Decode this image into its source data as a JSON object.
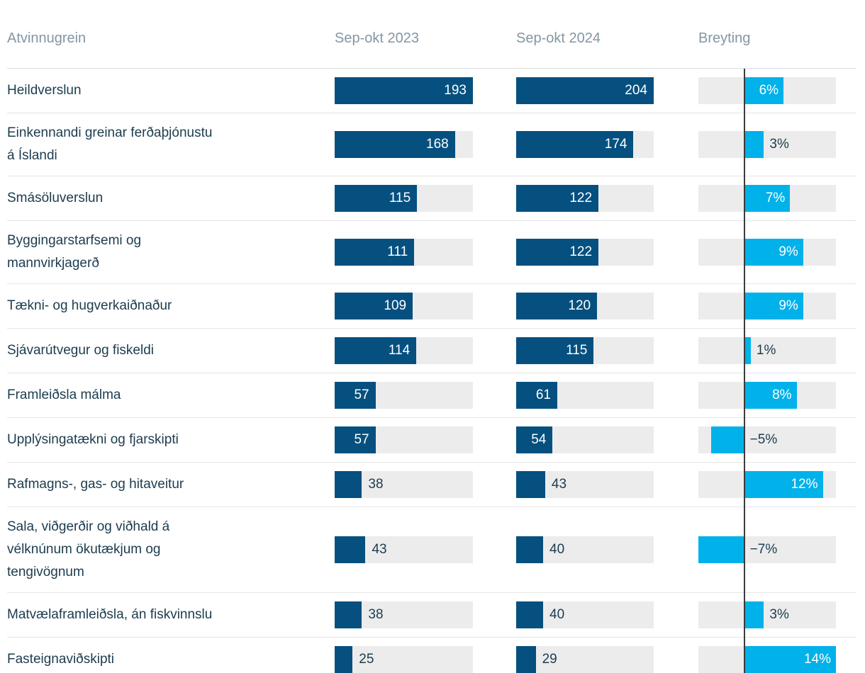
{
  "table": {
    "headers": {
      "industry": "Atvinnugrein",
      "period1": "Sep-okt 2023",
      "period2": "Sep-okt 2024",
      "change": "Breyting"
    },
    "rows": [
      {
        "label": "Heildverslun",
        "v2023": 193,
        "v2024": 204,
        "change_pct": 6,
        "change_label": "6%"
      },
      {
        "label": "Einkennandi greinar ferðaþjónustu á Íslandi",
        "v2023": 168,
        "v2024": 174,
        "change_pct": 3,
        "change_label": "3%"
      },
      {
        "label": "Smásöluverslun",
        "v2023": 115,
        "v2024": 122,
        "change_pct": 7,
        "change_label": "7%"
      },
      {
        "label": "Byggingarstarfsemi og mannvirkjagerð",
        "v2023": 111,
        "v2024": 122,
        "change_pct": 9,
        "change_label": "9%"
      },
      {
        "label": "Tækni- og hugverkaiðnaður",
        "v2023": 109,
        "v2024": 120,
        "change_pct": 9,
        "change_label": "9%"
      },
      {
        "label": "Sjávarútvegur og fiskeldi",
        "v2023": 114,
        "v2024": 115,
        "change_pct": 1,
        "change_label": "1%"
      },
      {
        "label": "Framleiðsla málma",
        "v2023": 57,
        "v2024": 61,
        "change_pct": 8,
        "change_label": "8%"
      },
      {
        "label": "Upplýsingatækni og fjarskipti",
        "v2023": 57,
        "v2024": 54,
        "change_pct": -5,
        "change_label": "−5%"
      },
      {
        "label": "Rafmagns-, gas- og hitaveitur",
        "v2023": 38,
        "v2024": 43,
        "change_pct": 12,
        "change_label": "12%"
      },
      {
        "label": "Sala, viðgerðir og viðhald á vélknúnum ökutækjum og tengivögnum",
        "v2023": 43,
        "v2024": 40,
        "change_pct": -7,
        "change_label": "−7%"
      },
      {
        "label": "Matvælaframleiðsla, án fiskvinnslu",
        "v2023": 38,
        "v2024": 40,
        "change_pct": 3,
        "change_label": "3%"
      },
      {
        "label": "Fasteignaviðskipti",
        "v2023": 25,
        "v2024": 29,
        "change_pct": 14,
        "change_label": "14%"
      }
    ]
  },
  "colors": {
    "bar_navy": "#05507f",
    "bar_cyan": "#00b1ea",
    "track_gray": "#ececec",
    "header_text": "#8496a3",
    "label_text": "#1c3c4e",
    "value_text_inside": "#ffffff",
    "zero_line": "#3c3c3c",
    "row_border": "#e5e5e5"
  },
  "chart_data": {
    "type": "bar",
    "title": "",
    "orientation": "horizontal",
    "categories": [
      "Heildverslun",
      "Einkennandi greinar ferðaþjónustu á Íslandi",
      "Smásöluverslun",
      "Byggingarstarfsemi og mannvirkjagerð",
      "Tækni- og hugverkaiðnaður",
      "Sjávarútvegur og fiskeldi",
      "Framleiðsla málma",
      "Upplýsingatækni og fjarskipti",
      "Rafmagns-, gas- og hitaveitur",
      "Sala, viðgerðir og viðhald á vélknúnum ökutækjum og tengivögnum",
      "Matvælaframleiðsla, án fiskvinnslu",
      "Fasteignaviðskipti"
    ],
    "series": [
      {
        "name": "Sep-okt 2023",
        "values": [
          193,
          168,
          115,
          111,
          109,
          114,
          57,
          57,
          38,
          43,
          38,
          25
        ]
      },
      {
        "name": "Sep-okt 2024",
        "values": [
          204,
          174,
          122,
          122,
          120,
          115,
          61,
          54,
          43,
          40,
          40,
          29
        ]
      },
      {
        "name": "Breyting",
        "unit": "%",
        "values": [
          6,
          3,
          7,
          9,
          9,
          1,
          8,
          -5,
          12,
          -7,
          3,
          14
        ]
      }
    ],
    "layout_hints": {
      "value_bars_scaled_to_column_max": true,
      "column_max": {
        "Sep-okt 2023": 193,
        "Sep-okt 2024": 204
      },
      "change_axis_range": [
        -7,
        14
      ],
      "zero_line": true,
      "grid": false,
      "legend_position": "column headers"
    }
  }
}
